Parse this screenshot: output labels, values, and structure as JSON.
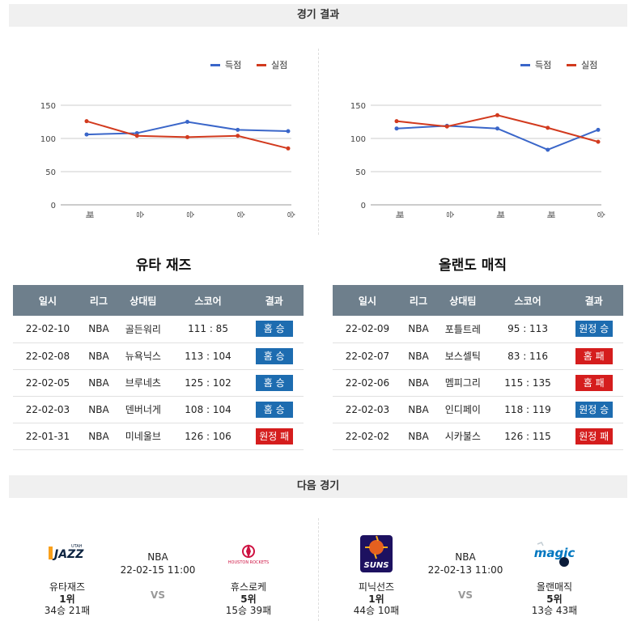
{
  "sections": {
    "results_title": "경기 결과",
    "next_title": "다음 경기"
  },
  "legend": {
    "scored": "득점",
    "allowed": "실점",
    "scored_color": "#3a66c9",
    "allowed_color": "#d23a1e"
  },
  "chart_data": [
    {
      "type": "line",
      "categories": [
        "패",
        "승",
        "승",
        "승",
        "승"
      ],
      "series": [
        {
          "name": "득점",
          "values": [
            106,
            108,
            125,
            113,
            111
          ]
        },
        {
          "name": "실점",
          "values": [
            126,
            104,
            102,
            104,
            85
          ]
        }
      ],
      "yticks": [
        0,
        50,
        100,
        150
      ],
      "ylim": [
        0,
        150
      ],
      "legend": "top-right",
      "grid": true
    },
    {
      "type": "line",
      "categories": [
        "패",
        "승",
        "패",
        "패",
        "승"
      ],
      "series": [
        {
          "name": "득점",
          "values": [
            115,
            119,
            115,
            83,
            113
          ]
        },
        {
          "name": "실점",
          "values": [
            126,
            118,
            135,
            116,
            95
          ]
        }
      ],
      "yticks": [
        0,
        50,
        100,
        150
      ],
      "ylim": [
        0,
        150
      ],
      "legend": "top-right",
      "grid": true
    }
  ],
  "headers": [
    "일시",
    "리그",
    "상대팀",
    "스코어",
    "결과"
  ],
  "teams": [
    {
      "name": "유타 재즈",
      "rows": [
        {
          "date": "22-02-10",
          "league": "NBA",
          "opponent": "골든워리",
          "score": "111 : 85",
          "result": "홈 승",
          "win": true
        },
        {
          "date": "22-02-08",
          "league": "NBA",
          "opponent": "뉴욕닉스",
          "score": "113 : 104",
          "result": "홈 승",
          "win": true
        },
        {
          "date": "22-02-05",
          "league": "NBA",
          "opponent": "브루네츠",
          "score": "125 : 102",
          "result": "홈 승",
          "win": true
        },
        {
          "date": "22-02-03",
          "league": "NBA",
          "opponent": "덴버너게",
          "score": "108 : 104",
          "result": "홈 승",
          "win": true
        },
        {
          "date": "22-01-31",
          "league": "NBA",
          "opponent": "미네울브",
          "score": "126 : 106",
          "result": "원정 패",
          "win": false
        }
      ]
    },
    {
      "name": "올랜도 매직",
      "rows": [
        {
          "date": "22-02-09",
          "league": "NBA",
          "opponent": "포틀트레",
          "score": "95 : 113",
          "result": "원정 승",
          "win": true
        },
        {
          "date": "22-02-07",
          "league": "NBA",
          "opponent": "보스셀틱",
          "score": "83 : 116",
          "result": "홈 패",
          "win": false
        },
        {
          "date": "22-02-06",
          "league": "NBA",
          "opponent": "멤피그리",
          "score": "115 : 135",
          "result": "홈 패",
          "win": false
        },
        {
          "date": "22-02-03",
          "league": "NBA",
          "opponent": "인디페이",
          "score": "118 : 119",
          "result": "원정 승",
          "win": true
        },
        {
          "date": "22-02-02",
          "league": "NBA",
          "opponent": "시카불스",
          "score": "126 : 115",
          "result": "원정 패",
          "win": false
        }
      ]
    }
  ],
  "next_games": [
    {
      "league": "NBA",
      "datetime": "22-02-15 11:00",
      "vs": "VS",
      "home": {
        "name": "유타재즈",
        "rank": "1위",
        "record": "34승 21패",
        "logo_text": "UTAH JAZZ",
        "logo_color": "#0c2340"
      },
      "away": {
        "name": "휴스로케",
        "rank": "5위",
        "record": "15승 39패",
        "logo_text": "HOUSTON ROCKETS",
        "logo_color": "#ce1141"
      }
    },
    {
      "league": "NBA",
      "datetime": "22-02-13 11:00",
      "vs": "VS",
      "home": {
        "name": "피닉선즈",
        "rank": "1위",
        "record": "44승 10패",
        "logo_text": "SUNS",
        "logo_color": "#1d1160"
      },
      "away": {
        "name": "올랜매직",
        "rank": "5위",
        "record": "13승 43패",
        "logo_text": "magic",
        "logo_color": "#0077c0"
      }
    }
  ]
}
